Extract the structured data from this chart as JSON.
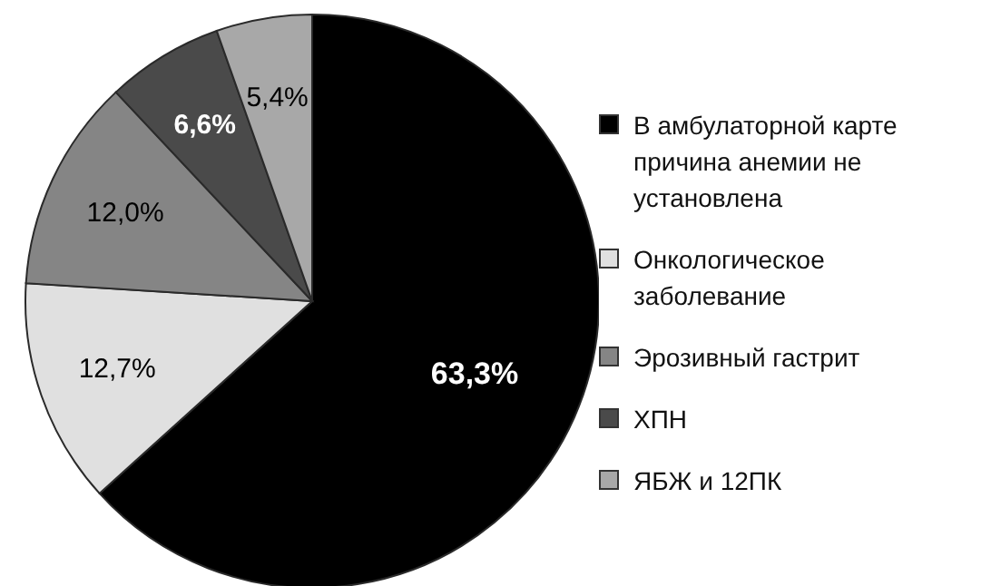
{
  "chart_data": {
    "type": "pie",
    "categories": [
      "В амбулаторной карте причина анемии не установлена",
      "Онкологическое заболевание",
      "Эрозивный гастрит",
      "ХПН",
      "ЯБЖ и 12ПК"
    ],
    "values": [
      63.3,
      12.7,
      12.0,
      6.6,
      5.4
    ],
    "value_labels": [
      "63,3%",
      "12,7%",
      "12,0%",
      "6,6%",
      "5,4%"
    ],
    "colors": [
      "#000000",
      "#e0e0e0",
      "#858585",
      "#4a4a4a",
      "#a8a8a8"
    ],
    "legend": "right"
  }
}
